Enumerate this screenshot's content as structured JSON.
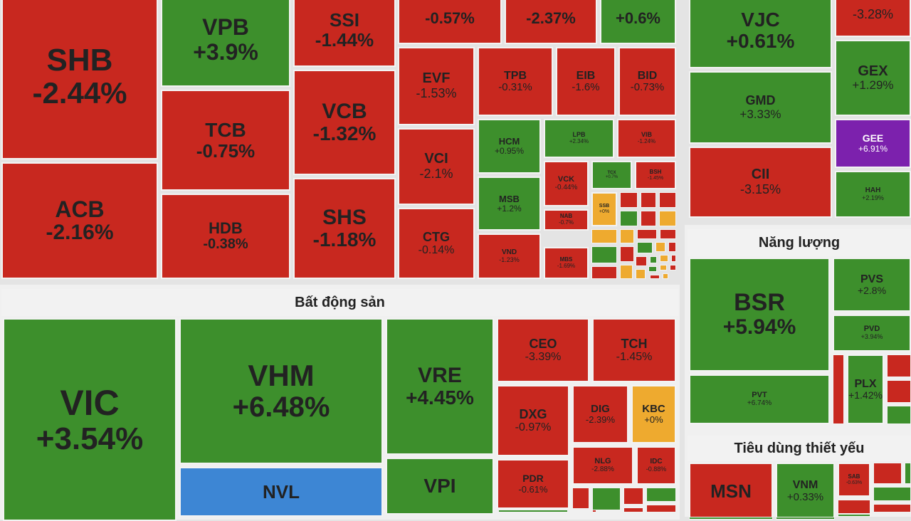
{
  "colors": {
    "red": "#c8281f",
    "green": "#3d8f2c",
    "yellow": "#eeaa2f",
    "purple": "#7c21ad",
    "blue": "#3d86d4",
    "text_dark": "#222222",
    "text_light": "#ffffff"
  },
  "chart_data": {
    "type": "heatmap",
    "sectors": [
      {
        "name": "Bất động sản"
      },
      {
        "name": "Năng lượng"
      },
      {
        "name": "Tiêu dùng thiết yếu"
      }
    ],
    "tiles": [
      {
        "symbol": "SHB",
        "change": "-2.44%",
        "color": "red"
      },
      {
        "symbol": "ACB",
        "change": "-2.16%",
        "color": "red"
      },
      {
        "symbol": "VPB",
        "change": "+3.9%",
        "color": "green"
      },
      {
        "symbol": "TCB",
        "change": "-0.75%",
        "color": "red"
      },
      {
        "symbol": "HDB",
        "change": "-0.38%",
        "color": "red"
      },
      {
        "symbol": "SSI",
        "change": "-1.44%",
        "color": "red"
      },
      {
        "symbol": "VCB",
        "change": "-1.32%",
        "color": "red"
      },
      {
        "symbol": "SHS",
        "change": "-1.18%",
        "color": "red"
      },
      {
        "symbol": "",
        "change": "-0.57%",
        "color": "red"
      },
      {
        "symbol": "",
        "change": "-2.37%",
        "color": "red"
      },
      {
        "symbol": "",
        "change": "+0.6%",
        "color": "green"
      },
      {
        "symbol": "EVF",
        "change": "-1.53%",
        "color": "red"
      },
      {
        "symbol": "VCI",
        "change": "-2.1%",
        "color": "red"
      },
      {
        "symbol": "CTG",
        "change": "-0.14%",
        "color": "red"
      },
      {
        "symbol": "TPB",
        "change": "-0.31%",
        "color": "red"
      },
      {
        "symbol": "EIB",
        "change": "-1.6%",
        "color": "red"
      },
      {
        "symbol": "BID",
        "change": "-0.73%",
        "color": "red"
      },
      {
        "symbol": "HCM",
        "change": "+0.95%",
        "color": "green"
      },
      {
        "symbol": "LPB",
        "change": "+2.34%",
        "color": "green"
      },
      {
        "symbol": "VIB",
        "change": "-1.24%",
        "color": "red"
      },
      {
        "symbol": "MSB",
        "change": "+1.2%",
        "color": "green"
      },
      {
        "symbol": "VCK",
        "change": "-0.44%",
        "color": "red"
      },
      {
        "symbol": "NAB",
        "change": "-0.7%",
        "color": "red"
      },
      {
        "symbol": "MBS",
        "change": "-1.69%",
        "color": "red"
      },
      {
        "symbol": "VND",
        "change": "-1.23%",
        "color": "red"
      },
      {
        "symbol": "TCX",
        "change": "+0.7%",
        "color": "green"
      },
      {
        "symbol": "BSH",
        "change": "-1.45%",
        "color": "red"
      },
      {
        "symbol": "SSB",
        "change": "+0%",
        "color": "yellow"
      },
      {
        "symbol": "VJC",
        "change": "+0.61%",
        "color": "green"
      },
      {
        "symbol": "GMD",
        "change": "+3.33%",
        "color": "green"
      },
      {
        "symbol": "CII",
        "change": "-3.15%",
        "color": "red"
      },
      {
        "symbol": "",
        "change": "-3.28%",
        "color": "red"
      },
      {
        "symbol": "GEX",
        "change": "+1.29%",
        "color": "green"
      },
      {
        "symbol": "GEE",
        "change": "+6.91%",
        "color": "purple"
      },
      {
        "symbol": "HAH",
        "change": "+2.19%",
        "color": "green"
      },
      {
        "symbol": "VIC",
        "change": "+3.54%",
        "color": "green"
      },
      {
        "symbol": "VHM",
        "change": "+6.48%",
        "color": "green"
      },
      {
        "symbol": "NVL",
        "change": "",
        "color": "blue"
      },
      {
        "symbol": "VRE",
        "change": "+4.45%",
        "color": "green"
      },
      {
        "symbol": "VPI",
        "change": "",
        "color": "green"
      },
      {
        "symbol": "CEO",
        "change": "-3.39%",
        "color": "red"
      },
      {
        "symbol": "TCH",
        "change": "-1.45%",
        "color": "red"
      },
      {
        "symbol": "DXG",
        "change": "-0.97%",
        "color": "red"
      },
      {
        "symbol": "DIG",
        "change": "-2.39%",
        "color": "red"
      },
      {
        "symbol": "KBC",
        "change": "+0%",
        "color": "yellow"
      },
      {
        "symbol": "PDR",
        "change": "-0.61%",
        "color": "red"
      },
      {
        "symbol": "NLG",
        "change": "-2.88%",
        "color": "red"
      },
      {
        "symbol": "IDC",
        "change": "-0.88%",
        "color": "red"
      },
      {
        "symbol": "BSR",
        "change": "+5.94%",
        "color": "green"
      },
      {
        "symbol": "PVS",
        "change": "+2.8%",
        "color": "green"
      },
      {
        "symbol": "PVD",
        "change": "+3.94%",
        "color": "green"
      },
      {
        "symbol": "PLX",
        "change": "+1.42%",
        "color": "green"
      },
      {
        "symbol": "PVT",
        "change": "+6.74%",
        "color": "green"
      },
      {
        "symbol": "MSN",
        "change": "",
        "color": "red"
      },
      {
        "symbol": "VNM",
        "change": "+0.33%",
        "color": "green"
      },
      {
        "symbol": "SAB",
        "change": "-0.63%",
        "color": "red"
      }
    ],
    "filler": [
      "red",
      "red",
      "red",
      "green",
      "red",
      "yellow",
      "yellow",
      "yellow",
      "red",
      "red",
      "green",
      "red",
      "green",
      "yellow",
      "red",
      "red",
      "yellow",
      "red",
      "green",
      "yellow",
      "red",
      "yellow",
      "green",
      "yellow",
      "red",
      "red",
      "yellow",
      "red",
      "red",
      "green",
      "red",
      "red",
      "green",
      "green",
      "red",
      "green",
      "red",
      "green",
      "red",
      "red",
      "red",
      "red",
      "red",
      "green",
      "green",
      "green",
      "green",
      "green",
      "green",
      "green",
      "red",
      "red",
      "green",
      "green",
      "green",
      "green",
      "green",
      "red",
      "green",
      "red",
      "red",
      "green",
      "red",
      "green"
    ]
  }
}
